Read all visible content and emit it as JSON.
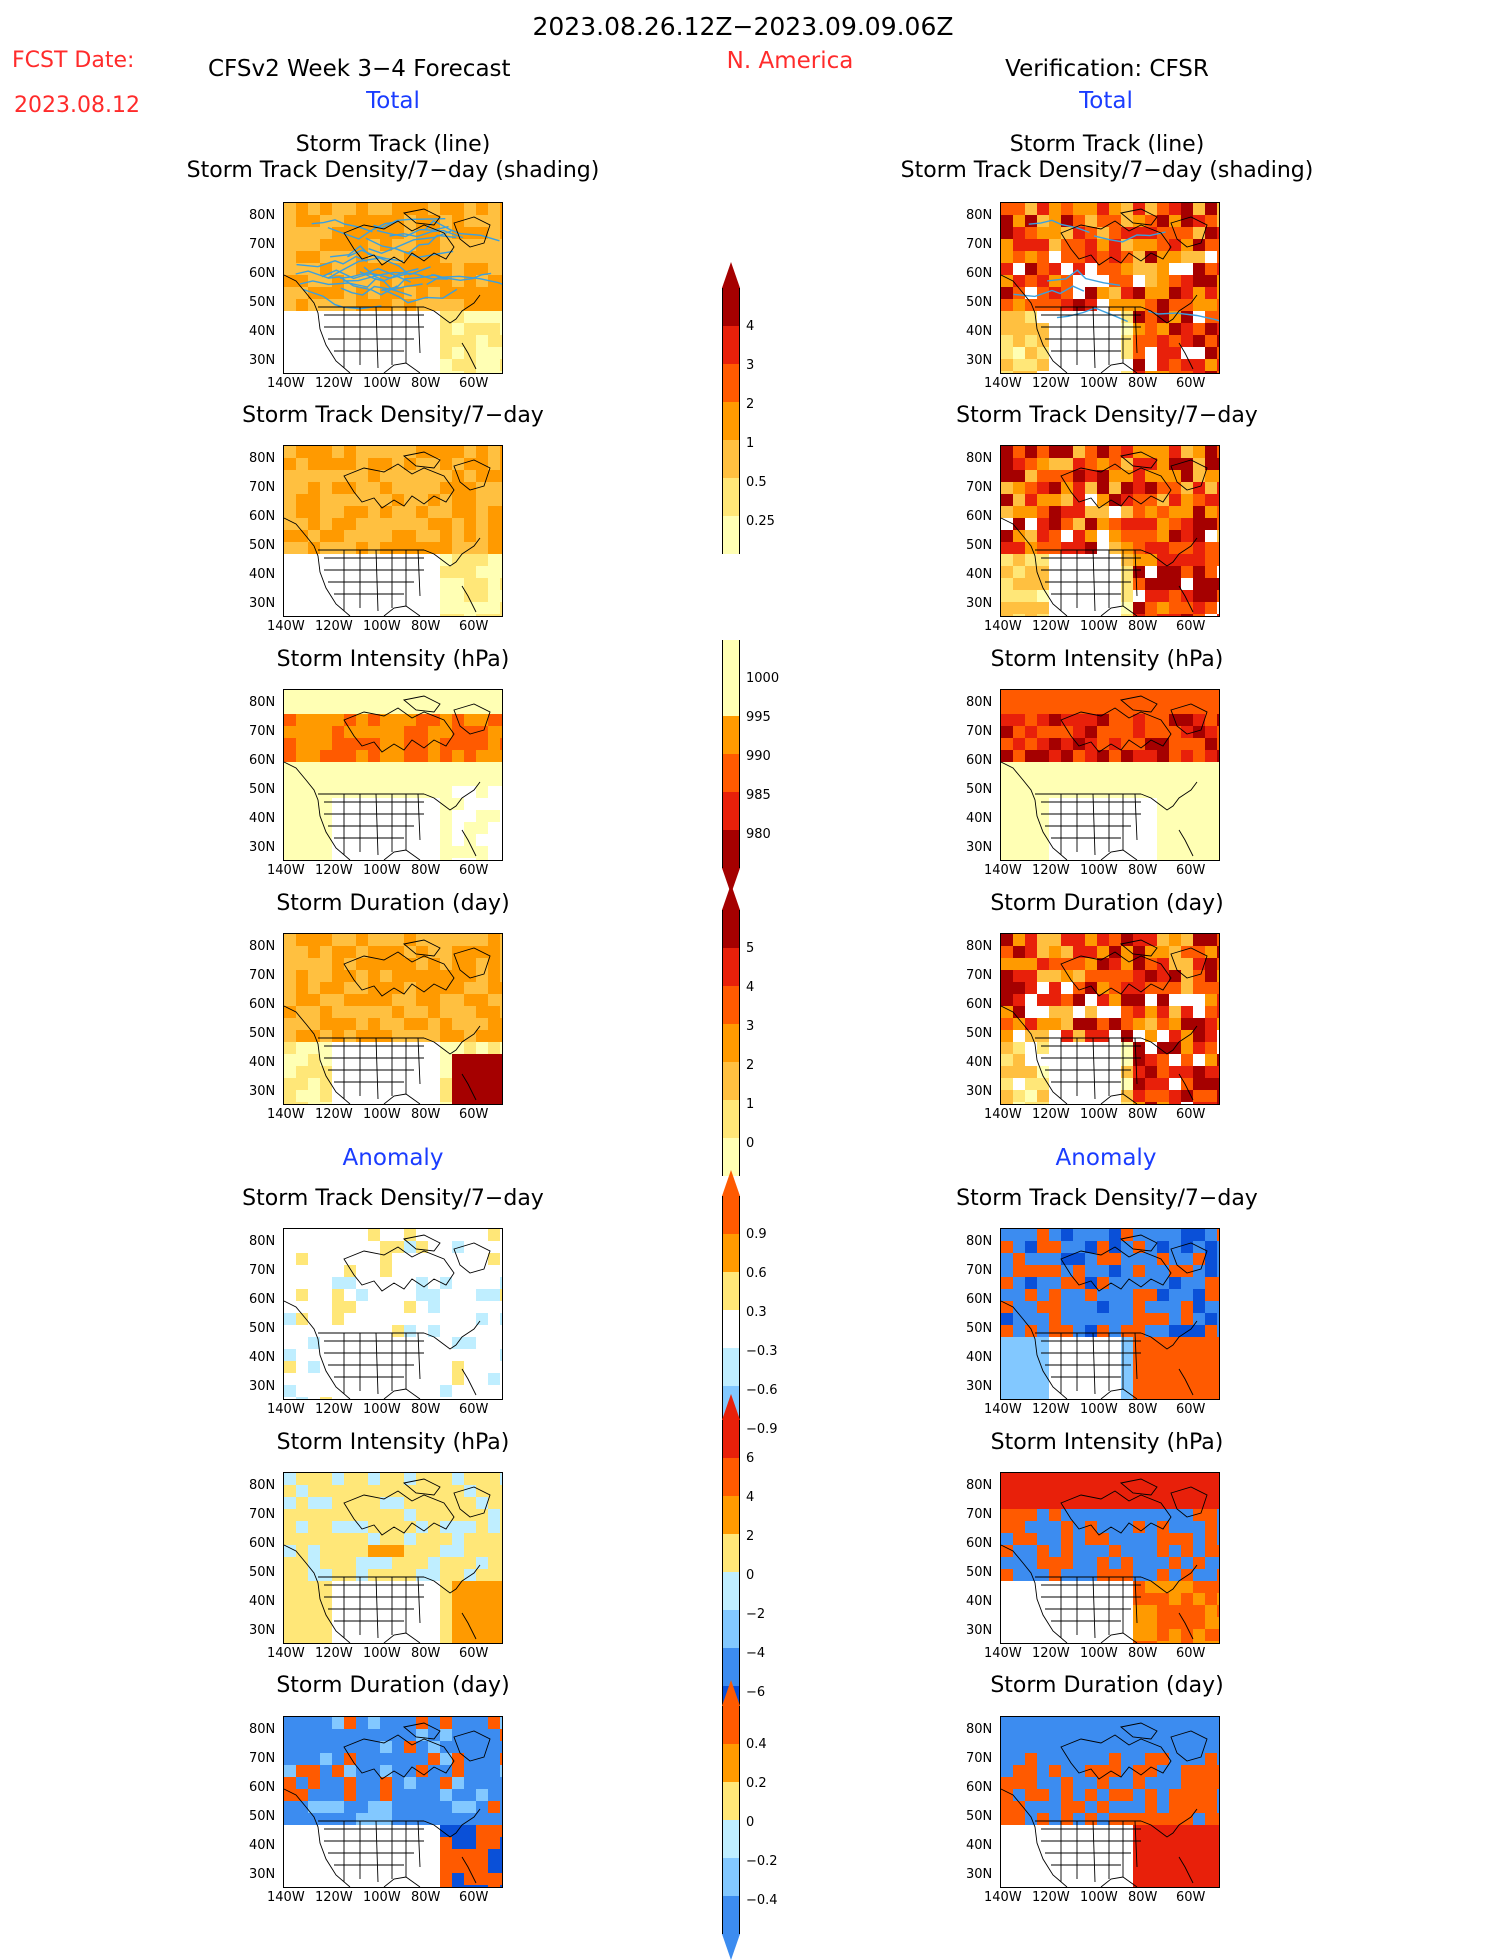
{
  "header": {
    "period": "2023.08.26.12Z−2023.09.09.06Z",
    "fcst_label": "FCST Date:",
    "fcst_date": "2023.08.12",
    "left_title": "CFSv2 Week 3−4 Forecast",
    "region": "N. America",
    "right_title": "Verification: CFSR"
  },
  "section_labels": {
    "total": "Total",
    "anomaly": "Anomaly"
  },
  "panel_titles": {
    "track_line": "Storm Track (line)",
    "track_shading": "Storm Track Density/7−day (shading)",
    "density": "Storm Track Density/7−day",
    "intensity": "Storm Intensity (hPa)",
    "duration": "Storm Duration (day)"
  },
  "axis": {
    "lat_labels": [
      "80N",
      "70N",
      "60N",
      "50N",
      "40N",
      "30N"
    ],
    "lon_labels": [
      "140W",
      "120W",
      "100W",
      "80W",
      "60W"
    ]
  },
  "colorbars": {
    "density_total": [
      "4",
      "3",
      "2",
      "1",
      "0.5",
      "0.25"
    ],
    "intensity_total": [
      "1000",
      "995",
      "990",
      "985",
      "980"
    ],
    "duration_total": [
      "5",
      "4",
      "3",
      "2",
      "1",
      "0"
    ],
    "density_anom": [
      "0.9",
      "0.6",
      "0.3",
      "−0.3",
      "−0.6",
      "−0.9"
    ],
    "intensity_anom": [
      "6",
      "4",
      "2",
      "0",
      "−2",
      "−4",
      "−6"
    ],
    "duration_anom": [
      "0.4",
      "0.2",
      "0",
      "−0.2",
      "−0.4"
    ]
  },
  "colors": {
    "yellow_light": "#ffffb4",
    "yellow": "#ffe778",
    "orange_light": "#ffc040",
    "orange": "#ff9a00",
    "orange_red": "#ff5a00",
    "red": "#e8200a",
    "dark_red": "#a50000",
    "blue_light": "#bfeeff",
    "blue_mid": "#82c8ff",
    "blue": "#3c8cf0",
    "blue_dark": "#0a50d8",
    "track_line": "#3aa0e0"
  }
}
